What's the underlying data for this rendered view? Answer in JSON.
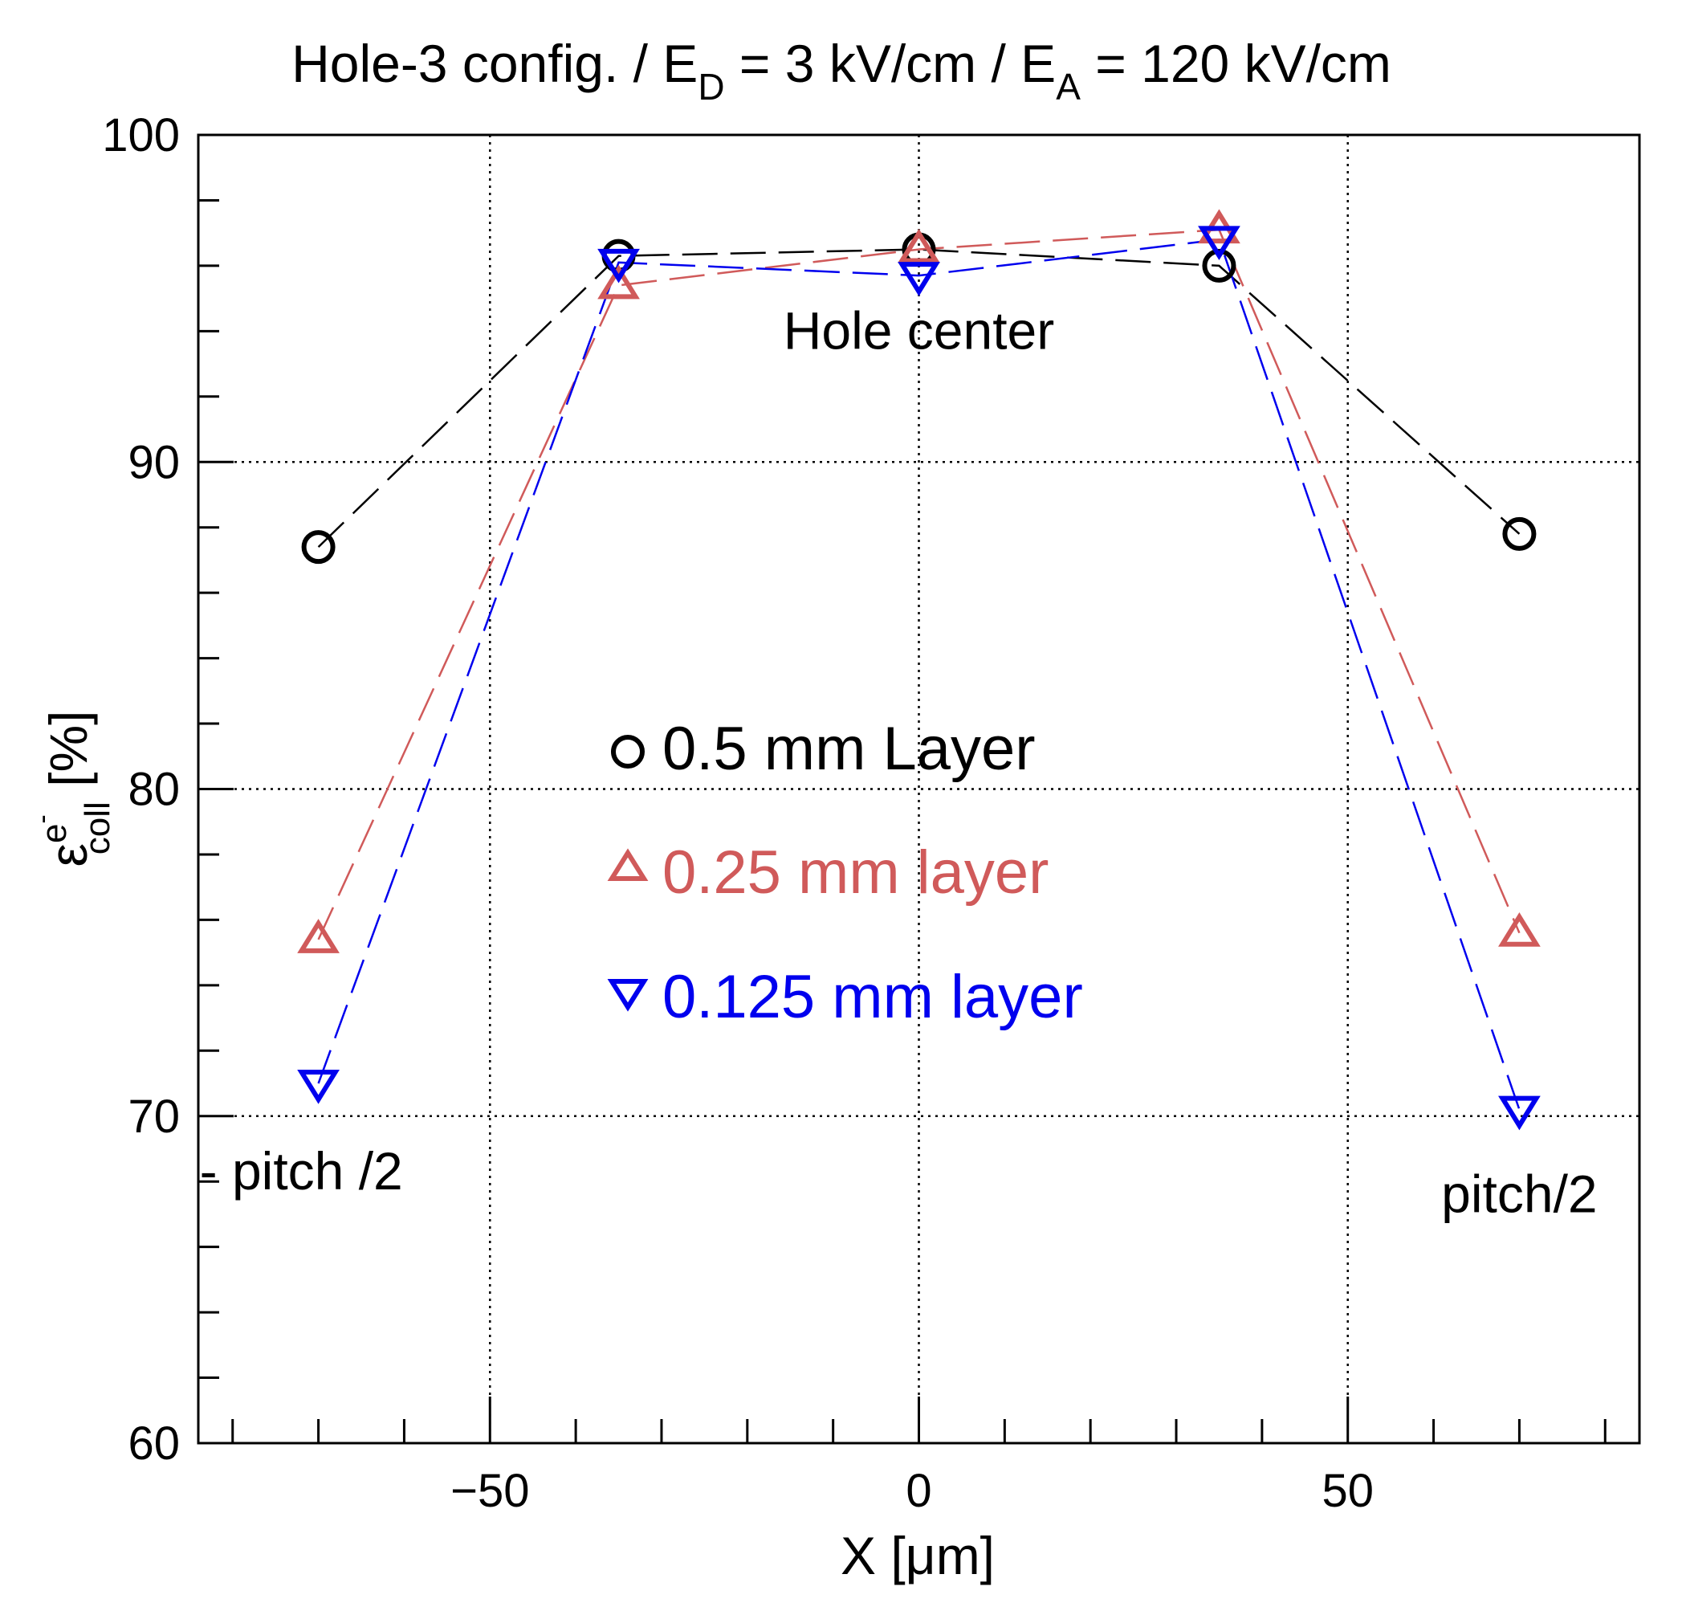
{
  "chart_data": {
    "type": "line",
    "title": {
      "prefix": "Hole-3 config. / E",
      "sub1": "D",
      "mid": " = 3 kV/cm / E",
      "sub2": "A",
      "suffix": " = 120 kV/cm"
    },
    "xlabel": "X [μm]",
    "ylabel": {
      "symbol": "ε",
      "sup": "e",
      "sup_mark": "-",
      "sub": "coll",
      "unit": " [%]"
    },
    "xlim": [
      -84,
      84
    ],
    "ylim": [
      60,
      100
    ],
    "x_ticks": [
      -50,
      0,
      50
    ],
    "x_tick_labels": [
      "−50",
      "0",
      "50"
    ],
    "y_ticks": [
      60,
      70,
      80,
      90,
      100
    ],
    "y_tick_labels": [
      "60",
      "70",
      "80",
      "90",
      "100"
    ],
    "grid": true,
    "legend_position": "center",
    "series": [
      {
        "name": "0.5 mm Layer",
        "color": "#000000",
        "marker": "circle",
        "x": [
          -70,
          -35,
          0,
          35,
          70
        ],
        "y": [
          87.4,
          96.3,
          96.5,
          96.0,
          87.8
        ]
      },
      {
        "name": "0.25 mm layer",
        "color": "#d05a5a",
        "marker": "triangle-up",
        "x": [
          -70,
          -35,
          0,
          35,
          70
        ],
        "y": [
          75.4,
          95.4,
          96.5,
          97.1,
          75.6
        ]
      },
      {
        "name": "0.125 mm layer",
        "color": "#0000ee",
        "marker": "triangle-down",
        "x": [
          -70,
          -35,
          0,
          35,
          70
        ],
        "y": [
          71.0,
          96.1,
          95.7,
          96.8,
          70.2
        ]
      }
    ],
    "annotations": [
      {
        "text": "Hole center",
        "x": 0,
        "y": 94.0
      },
      {
        "text": "- pitch /2",
        "x": -72,
        "y": 68.3
      },
      {
        "text": "pitch/2",
        "x": 70,
        "y": 67.6
      }
    ]
  }
}
